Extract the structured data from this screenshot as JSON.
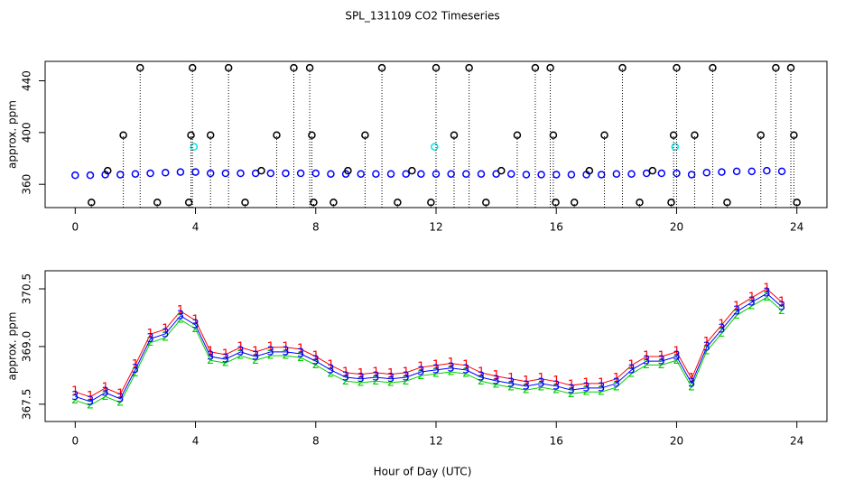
{
  "chart_data": [
    {
      "type": "scatter",
      "title": "SPL_131109  CO2 Timeseries",
      "ylabel": "approx. ppm",
      "xlim": [
        -1,
        25
      ],
      "ylim": [
        342,
        455
      ],
      "xticks": [
        0,
        4,
        8,
        12,
        16,
        20,
        24
      ],
      "yticks": [
        360,
        400,
        440
      ],
      "series": [
        {
          "color": "#0000ff",
          "x": [
            0,
            0.5,
            1,
            1.5,
            2,
            2.5,
            3,
            3.5,
            4,
            4.5,
            5,
            5.5,
            6,
            6.5,
            7,
            7.5,
            8,
            8.5,
            9,
            9.5,
            10,
            10.5,
            11,
            11.5,
            12,
            12.5,
            13,
            13.5,
            14,
            14.5,
            15,
            15.5,
            16,
            16.5,
            17,
            17.5,
            18,
            18.5,
            19,
            19.5,
            20,
            20.5,
            21,
            21.5,
            22,
            22.5,
            23,
            23.5
          ],
          "values": [
            367,
            367,
            367.5,
            367.5,
            368,
            368.5,
            369,
            369.5,
            369.5,
            368.5,
            368.5,
            368.5,
            368.5,
            368.5,
            368.5,
            368.5,
            368.5,
            368,
            368,
            368,
            368,
            368,
            368,
            368,
            368,
            368,
            368,
            368,
            368,
            368,
            367.5,
            367.5,
            367.5,
            367.5,
            367.5,
            367.5,
            368,
            368,
            368.5,
            368.5,
            368.5,
            367.5,
            369,
            369.5,
            370,
            370,
            370.5,
            370
          ]
        },
        {
          "color": "#00e5ee",
          "x": [
            3.95,
            11.95,
            19.95
          ],
          "values": [
            389,
            389,
            389
          ]
        },
        {
          "color": "#000000",
          "stems": true,
          "x": [
            2.16,
            3.9,
            5.1,
            7.27,
            7.8,
            10.2,
            12.0,
            13.1,
            15.3,
            15.8,
            18.2,
            20.0,
            21.2,
            23.3,
            23.8,
            1.6,
            3.85,
            4.5,
            6.7,
            7.87,
            9.64,
            12.6,
            14.7,
            15.9,
            17.6,
            19.9,
            20.6,
            22.8,
            23.9,
            0.54,
            2.73,
            3.78,
            5.65,
            7.93,
            8.59,
            10.72,
            11.83,
            13.66,
            15.98,
            16.6,
            18.77,
            19.82,
            21.68,
            24.0
          ],
          "values": [
            450,
            450,
            450,
            450,
            450,
            450,
            450,
            450,
            450,
            450,
            450,
            450,
            450,
            450,
            450,
            398,
            398,
            398,
            398,
            398,
            398,
            398,
            398,
            398,
            398,
            398,
            398,
            398,
            398,
            346,
            346,
            346,
            346,
            346,
            346,
            346,
            346,
            346,
            346,
            346,
            346,
            346,
            346,
            346
          ]
        },
        {
          "color": "#000000",
          "x": [
            1.08,
            6.19,
            9.07,
            11.2,
            14.17,
            17.1,
            19.2
          ],
          "values": [
            370.5,
            370.5,
            370.5,
            370.5,
            370.5,
            370.5,
            370.5
          ]
        }
      ]
    },
    {
      "type": "line",
      "ylabel": "approx. ppm",
      "xlabel": "Hour of Day (UTC)",
      "xlim": [
        -1,
        25
      ],
      "ylim": [
        367.05,
        370.97
      ],
      "xticks": [
        0,
        4,
        8,
        12,
        16,
        20,
        24
      ],
      "yticks": [
        367.5,
        {
          "value": 369,
          "label": "369.0"
        },
        370.5
      ],
      "x": [
        0,
        0.5,
        1,
        1.5,
        2,
        2.5,
        3,
        3.5,
        4,
        4.5,
        5,
        5.5,
        6,
        6.5,
        7,
        7.5,
        8,
        8.5,
        9,
        9.5,
        10,
        10.5,
        11,
        11.5,
        12,
        12.5,
        13,
        13.5,
        14,
        14.5,
        15,
        15.5,
        16,
        16.5,
        17,
        17.5,
        18,
        18.5,
        19,
        19.5,
        20,
        20.5,
        21,
        21.5,
        22,
        22.5,
        23,
        23.5
      ],
      "series": [
        {
          "marker": "1",
          "color": "#ff0000",
          "values": [
            367.82,
            367.69,
            367.92,
            367.76,
            368.52,
            369.32,
            369.45,
            369.92,
            369.68,
            368.86,
            368.79,
            368.98,
            368.86,
            368.98,
            368.98,
            368.93,
            368.74,
            368.51,
            368.32,
            368.28,
            368.32,
            368.28,
            368.32,
            368.46,
            368.51,
            368.56,
            368.51,
            368.32,
            368.23,
            368.16,
            368.09,
            368.16,
            368.09,
            367.99,
            368.04,
            368.04,
            368.16,
            368.51,
            368.74,
            368.74,
            368.86,
            368.16,
            369.1,
            369.56,
            370.03,
            370.27,
            370.5,
            370.15
          ]
        },
        {
          "marker": "2",
          "color": "#00cd00",
          "values": [
            367.6,
            367.47,
            367.7,
            367.54,
            368.3,
            369.1,
            369.23,
            369.7,
            369.46,
            368.64,
            368.57,
            368.76,
            368.64,
            368.76,
            368.76,
            368.71,
            368.52,
            368.29,
            368.1,
            368.06,
            368.1,
            368.06,
            368.1,
            368.24,
            368.29,
            368.34,
            368.29,
            368.1,
            368.01,
            367.94,
            367.87,
            367.94,
            367.87,
            367.77,
            367.82,
            367.82,
            367.94,
            368.29,
            368.52,
            368.52,
            368.64,
            367.94,
            368.88,
            369.34,
            369.81,
            370.05,
            370.28,
            369.93
          ]
        },
        {
          "marker": "3",
          "color": "#0000ff",
          "values": [
            367.7,
            367.57,
            367.8,
            367.64,
            368.4,
            369.2,
            369.33,
            369.8,
            369.56,
            368.74,
            368.67,
            368.86,
            368.74,
            368.86,
            368.86,
            368.81,
            368.62,
            368.39,
            368.2,
            368.16,
            368.2,
            368.16,
            368.2,
            368.34,
            368.39,
            368.44,
            368.39,
            368.2,
            368.11,
            368.04,
            367.97,
            368.04,
            367.97,
            367.87,
            367.92,
            367.92,
            368.04,
            368.39,
            368.62,
            368.62,
            368.74,
            368.04,
            368.98,
            369.44,
            369.91,
            370.15,
            370.38,
            370.03
          ]
        }
      ]
    }
  ]
}
